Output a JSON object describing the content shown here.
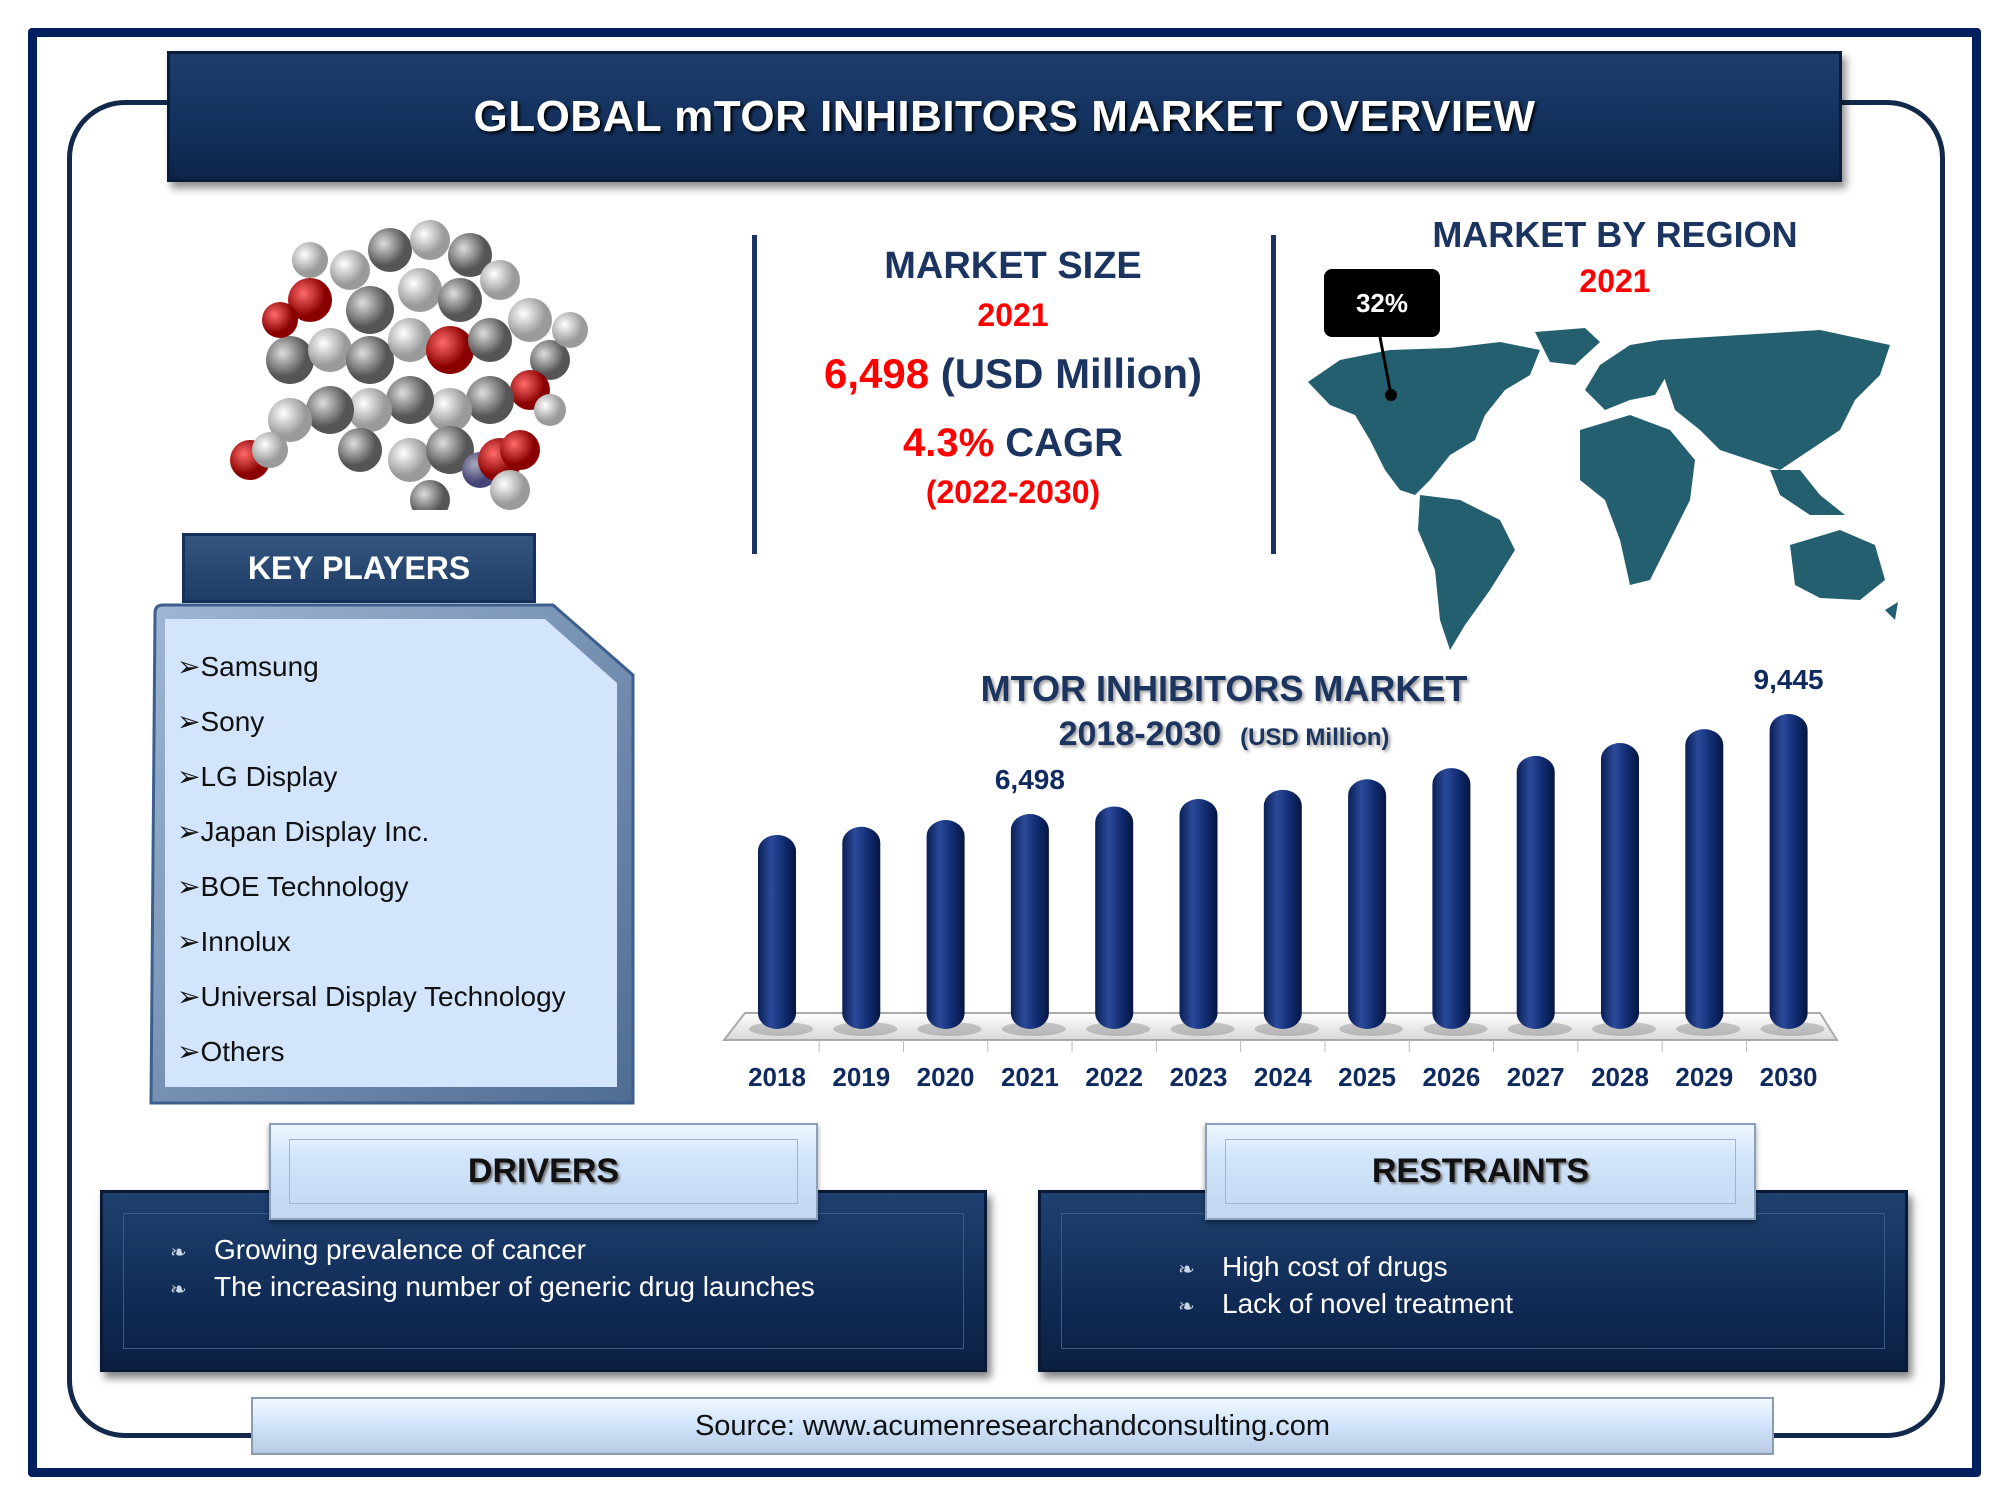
{
  "header": {
    "title": "GLOBAL mTOR INHIBITORS MARKET OVERVIEW"
  },
  "market_size": {
    "label": "MARKET SIZE",
    "year": "2021",
    "value": "6,498",
    "unit": "(USD Million)",
    "cagr_value": "4.3%",
    "cagr_label": "CAGR",
    "cagr_period": "(2022-2030)"
  },
  "region": {
    "title": "MARKET BY REGION",
    "year": "2021",
    "callout": "32%",
    "highlighted_region": "North America",
    "map_color": "#235f6e"
  },
  "key_players": {
    "title": "KEY PLAYERS",
    "bullet": "➢",
    "items": [
      "Samsung",
      "Sony",
      "LG Display",
      "Japan Display Inc.",
      "BOE Technology",
      "Innolux",
      "Universal Display Technology",
      "Others"
    ]
  },
  "drivers": {
    "title": "DRIVERS",
    "items": [
      "Growing prevalence of cancer",
      "The increasing number of generic drug launches"
    ]
  },
  "restraints": {
    "title": "RESTRAINTS",
    "items": [
      "High cost of drugs",
      "Lack of novel treatment"
    ]
  },
  "source": "Source: www.acumenresearchandconsulting.com",
  "colors": {
    "navy": "#1b3560",
    "bar": "#0f2a6e",
    "accent_red": "#ff0000",
    "frame": "#001f5f"
  },
  "chart_data": {
    "type": "bar",
    "title": "MTOR INHIBITORS MARKET",
    "subtitle": "2018-2030",
    "unit": "(USD Million)",
    "categories": [
      "2018",
      "2019",
      "2020",
      "2021",
      "2022",
      "2023",
      "2024",
      "2025",
      "2026",
      "2027",
      "2028",
      "2029",
      "2030"
    ],
    "values": [
      5880,
      6120,
      6320,
      6498,
      6720,
      6940,
      7210,
      7520,
      7850,
      8210,
      8590,
      9000,
      9445
    ],
    "data_labels": {
      "2021": "6,498",
      "2030": "9,445"
    },
    "grid": false,
    "legend": "none"
  }
}
